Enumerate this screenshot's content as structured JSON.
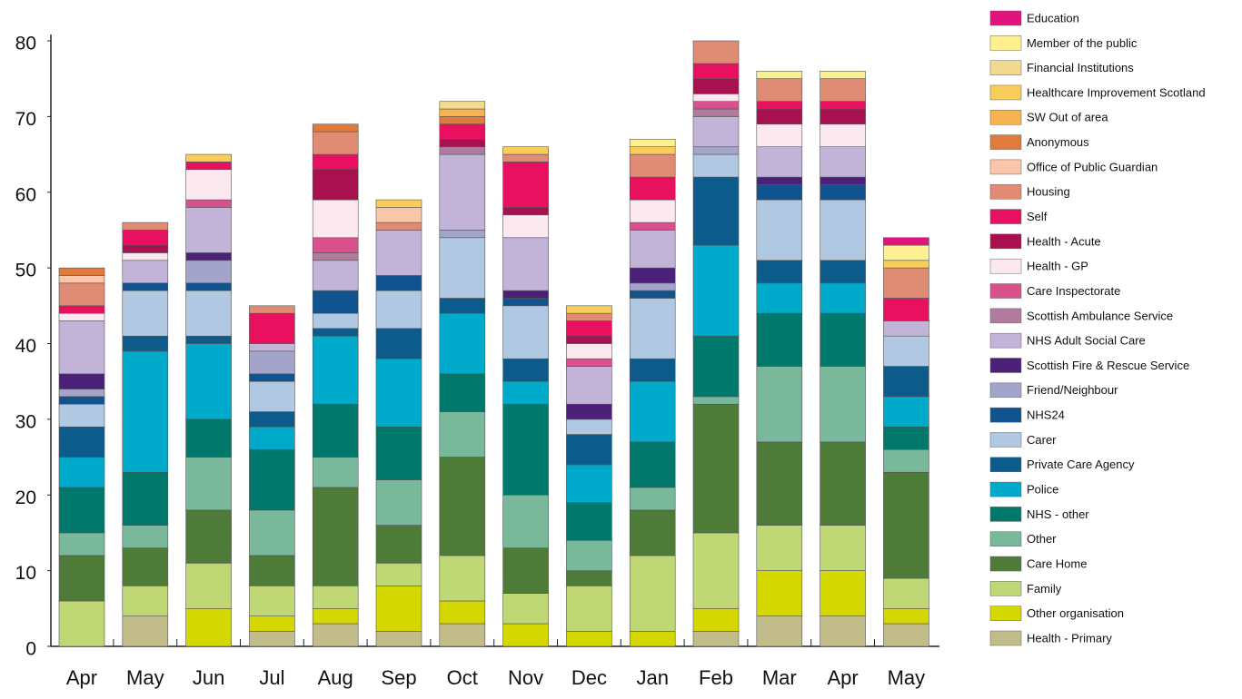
{
  "chart_data": {
    "type": "stacked-bar",
    "categories": [
      "Apr",
      "May",
      "Jun",
      "Jul",
      "Aug",
      "Sep",
      "Oct",
      "Nov",
      "Dec",
      "Jan",
      "Feb",
      "Mar",
      "Apr",
      "May"
    ],
    "ylim": [
      0,
      80
    ],
    "yticks": [
      0,
      10,
      20,
      30,
      40,
      50,
      60,
      70,
      80
    ],
    "series": [
      {
        "name": "Health - Primary",
        "color": "#c2bc8a",
        "values": [
          0,
          4,
          0,
          2,
          3,
          2,
          3,
          0,
          0,
          0,
          2,
          4,
          4,
          3
        ]
      },
      {
        "name": "Other organisation",
        "color": "#d5d800",
        "values": [
          0,
          0,
          5,
          2,
          2,
          6,
          3,
          3,
          2,
          2,
          3,
          6,
          6,
          2
        ]
      },
      {
        "name": "Family",
        "color": "#bfd775",
        "values": [
          6,
          4,
          6,
          4,
          3,
          3,
          6,
          4,
          6,
          10,
          10,
          6,
          6,
          4
        ]
      },
      {
        "name": "Care Home",
        "color": "#4e7b37",
        "values": [
          6,
          5,
          7,
          4,
          13,
          5,
          13,
          6,
          2,
          6,
          17,
          11,
          11,
          14
        ]
      },
      {
        "name": "Other",
        "color": "#79b89b",
        "values": [
          3,
          3,
          7,
          6,
          4,
          6,
          6,
          7,
          4,
          3,
          1,
          10,
          10,
          3
        ]
      },
      {
        "name": "NHS - other",
        "color": "#00786b",
        "values": [
          6,
          7,
          5,
          8,
          7,
          7,
          5,
          12,
          5,
          6,
          8,
          7,
          7,
          3
        ]
      },
      {
        "name": "Police",
        "color": "#00aacb",
        "values": [
          4,
          16,
          10,
          3,
          9,
          9,
          8,
          3,
          5,
          8,
          12,
          4,
          4,
          4
        ]
      },
      {
        "name": "Private Care Agency",
        "color": "#0d5b8b",
        "values": [
          4,
          2,
          1,
          2,
          1,
          4,
          2,
          3,
          4,
          3,
          9,
          3,
          3,
          4
        ]
      },
      {
        "name": "Carer",
        "color": "#b1c8e2",
        "values": [
          3,
          6,
          6,
          4,
          2,
          5,
          8,
          7,
          2,
          8,
          3,
          8,
          8,
          4
        ]
      },
      {
        "name": "NHS24",
        "color": "#10538f",
        "values": [
          1,
          1,
          1,
          1,
          3,
          2,
          0,
          1,
          0,
          1,
          0,
          2,
          2,
          0
        ]
      },
      {
        "name": "Friend/Neighbour",
        "color": "#a3a4c9",
        "values": [
          1,
          0,
          3,
          3,
          0,
          0,
          1,
          0,
          0,
          1,
          1,
          0,
          0,
          0
        ]
      },
      {
        "name": "Scottish Fire & Rescue Service",
        "color": "#4b2079",
        "values": [
          2,
          0,
          1,
          0,
          0,
          0,
          0,
          1,
          2,
          2,
          0,
          1,
          1,
          0
        ]
      },
      {
        "name": "NHS Adult Social Care",
        "color": "#c2b4d9",
        "values": [
          7,
          3,
          6,
          1,
          4,
          6,
          10,
          7,
          5,
          5,
          4,
          4,
          4,
          2
        ]
      },
      {
        "name": "Scottish Ambulance Service",
        "color": "#b07b9f",
        "values": [
          0,
          0,
          0,
          0,
          1,
          0,
          1,
          0,
          0,
          0,
          1,
          0,
          0,
          0
        ]
      },
      {
        "name": "Care Inspectorate",
        "color": "#d9508d",
        "values": [
          0,
          0,
          1,
          0,
          2,
          0,
          0,
          0,
          1,
          1,
          1,
          0,
          0,
          0
        ]
      },
      {
        "name": "Health - GP",
        "color": "#fce9f0",
        "values": [
          1,
          1,
          4,
          0,
          5,
          0,
          0,
          3,
          2,
          3,
          1,
          3,
          3,
          0
        ]
      },
      {
        "name": "Health - Acute",
        "color": "#a8104f",
        "values": [
          0,
          1,
          0,
          0,
          4,
          0,
          1,
          1,
          1,
          0,
          2,
          2,
          2,
          0
        ]
      },
      {
        "name": "Self",
        "color": "#e8105f",
        "values": [
          1,
          2,
          1,
          4,
          2,
          0,
          2,
          6,
          2,
          3,
          2,
          1,
          1,
          3
        ]
      },
      {
        "name": "Housing",
        "color": "#e08b73",
        "values": [
          3,
          1,
          0,
          1,
          3,
          1,
          0,
          1,
          1,
          3,
          3,
          3,
          3,
          4
        ]
      },
      {
        "name": "Office of Public Guardian",
        "color": "#f9c6a9",
        "values": [
          1,
          0,
          0,
          0,
          0,
          2,
          0,
          0,
          0,
          0,
          0,
          0,
          0,
          0
        ]
      },
      {
        "name": "Anonymous",
        "color": "#e07b3b",
        "values": [
          1,
          0,
          0,
          0,
          1,
          0,
          1,
          0,
          0,
          0,
          0,
          0,
          0,
          0
        ]
      },
      {
        "name": "SW Out of area",
        "color": "#f7b350",
        "values": [
          0,
          0,
          0,
          0,
          0,
          0,
          1,
          0,
          0,
          0,
          0,
          0,
          0,
          0
        ]
      },
      {
        "name": "Healthcare Improvement Scotland",
        "color": "#f9cd59",
        "values": [
          0,
          0,
          1,
          0,
          0,
          1,
          0,
          1,
          1,
          1,
          0,
          0,
          0,
          1
        ]
      },
      {
        "name": "Financial Institutions",
        "color": "#f1da90",
        "values": [
          0,
          0,
          0,
          0,
          0,
          0,
          1,
          0,
          0,
          0,
          0,
          0,
          0,
          0
        ]
      },
      {
        "name": "Member of the public",
        "color": "#fdf090",
        "values": [
          0,
          0,
          0,
          0,
          0,
          0,
          0,
          0,
          0,
          1,
          0,
          1,
          1,
          2
        ]
      },
      {
        "name": "Education",
        "color": "#e0137f",
        "values": [
          0,
          0,
          0,
          0,
          0,
          0,
          0,
          0,
          0,
          0,
          0,
          0,
          0,
          1
        ]
      }
    ]
  }
}
